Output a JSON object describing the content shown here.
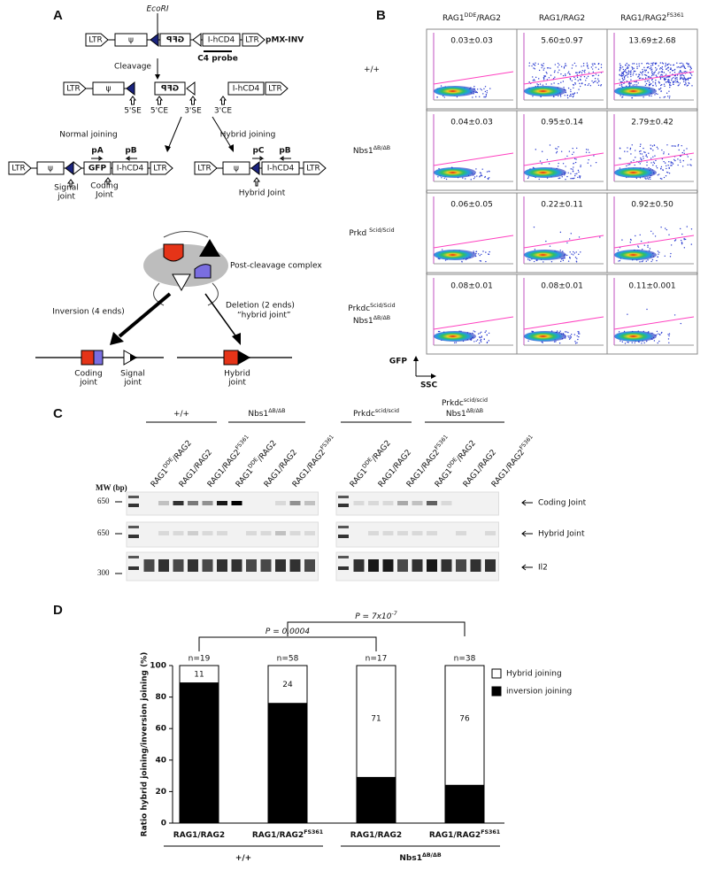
{
  "panel_labels": [
    "A",
    "B",
    "C",
    "D"
  ],
  "panel_a": {
    "ecori": "EcoRI",
    "construct": "pMX-INV",
    "ltr": "LTR",
    "psi": "ψ",
    "gfp": "GFP",
    "cd4": "I-hCD4",
    "probe": "C4 probe",
    "cleavage": "Cleavage",
    "ends": [
      "5'SE",
      "5'CE",
      "3'SE",
      "3'CE"
    ],
    "normal": "Normal joining",
    "hybrid": "Hybrid joining",
    "primers": [
      "pA",
      "pB",
      "pC",
      "pB"
    ],
    "signal_joint": [
      "Signal",
      "joint"
    ],
    "coding_joint": [
      "Coding",
      "Joint"
    ],
    "hybrid_joint": "Hybrid Joint",
    "complex": "Post-cleavage complex",
    "inversion": "Inversion (4 ends)",
    "deletion": [
      "Deletion (2 ends)",
      "“hybrid joint”"
    ],
    "products": [
      [
        "Coding",
        "joint"
      ],
      [
        "Signal",
        "joint"
      ],
      [
        "Hybrid",
        "joint"
      ]
    ]
  },
  "panel_b": {
    "col_headers": [
      [
        "RAG1",
        "DDE",
        "/RAG2"
      ],
      [
        "RAG1/RAG2"
      ],
      [
        "RAG1/RAG2",
        "FS361"
      ]
    ],
    "row_labels": [
      [
        [
          "+/+"
        ]
      ],
      [
        [
          "Nbs1",
          "ΔB/ΔB"
        ]
      ],
      [
        [
          "Prkd ",
          "Scid/Scid"
        ]
      ],
      [
        [
          "Prkdc",
          "Scid/Scid"
        ],
        [
          "Nbs1",
          "ΔB/ΔB"
        ]
      ]
    ],
    "values": [
      [
        "0.03±0.03",
        "5.60±0.97",
        "13.69±2.68"
      ],
      [
        "0.04±0.03",
        "0.95±0.14",
        "2.79±0.42"
      ],
      [
        "0.06±0.05",
        "0.22±0.11",
        "0.92±0.50"
      ],
      [
        "0.08±0.01",
        "0.08±0.01",
        "0.11±0.001"
      ]
    ],
    "y_axis": "GFP",
    "x_axis": "SSC"
  },
  "panel_c": {
    "groups": [
      [
        [
          "+/+"
        ]
      ],
      [
        [
          "Nbs1",
          "ΔB/ΔB"
        ]
      ],
      [
        [
          "Prkdc",
          "scid/scid"
        ]
      ],
      [
        [
          "Prkdc",
          "scid/scid"
        ],
        [
          "Nbs1",
          "ΔB/ΔB"
        ]
      ]
    ],
    "lanes": [
      [
        "RAG1",
        "DDE",
        "/RAG2"
      ],
      [
        "RAG1/RAG2"
      ],
      [
        "RAG1/RAG2",
        "FS361"
      ],
      [
        "RAG1",
        "DDE",
        "/RAG2"
      ],
      [
        "RAG1/RAG2"
      ],
      [
        "RAG1/RAG2",
        "FS361"
      ],
      [
        "RAG1",
        "DDE",
        "/RAG2"
      ],
      [
        "RAG1/RAG2"
      ],
      [
        "RAG1/RAG2",
        "FS361"
      ],
      [
        "RAG1",
        "DDE",
        "/RAG2"
      ],
      [
        "RAG1/RAG2"
      ],
      [
        "RAG1/RAG2",
        "FS361"
      ]
    ],
    "mw_label": "MW (bp)",
    "mw": [
      "650",
      "650",
      "300"
    ],
    "bands": [
      "Coding Joint",
      "Hybrid Joint",
      "Il2"
    ]
  },
  "chart_data": {
    "type": "bar",
    "stacked": true,
    "y_label": "Ratio hybrid joining/inversion joining (%)",
    "categories": [
      [
        "RAG1/RAG2"
      ],
      [
        "RAG1/RAG2",
        "FS361"
      ],
      [
        "RAG1/RAG2"
      ],
      [
        "RAG1/RAG2",
        "FS361"
      ]
    ],
    "series": [
      {
        "name": "inversion joining",
        "color": "#000000",
        "values": [
          89,
          76,
          29,
          24
        ]
      },
      {
        "name": "Hybrid joining",
        "color": "#ffffff",
        "values": [
          11,
          24,
          71,
          76
        ]
      }
    ],
    "n_labels": [
      "n=19",
      "n=58",
      "n=17",
      "n=38"
    ],
    "groups": [
      [
        "+/+"
      ],
      [
        "Nbs1",
        "ΔB/ΔB"
      ]
    ],
    "annotations": [
      [
        "P = 0.0004"
      ],
      [
        "P = 7x10",
        "-7"
      ]
    ],
    "ylim": [
      0,
      100
    ],
    "yticks": [
      0,
      20,
      40,
      60,
      80,
      100
    ],
    "legend": "right"
  }
}
